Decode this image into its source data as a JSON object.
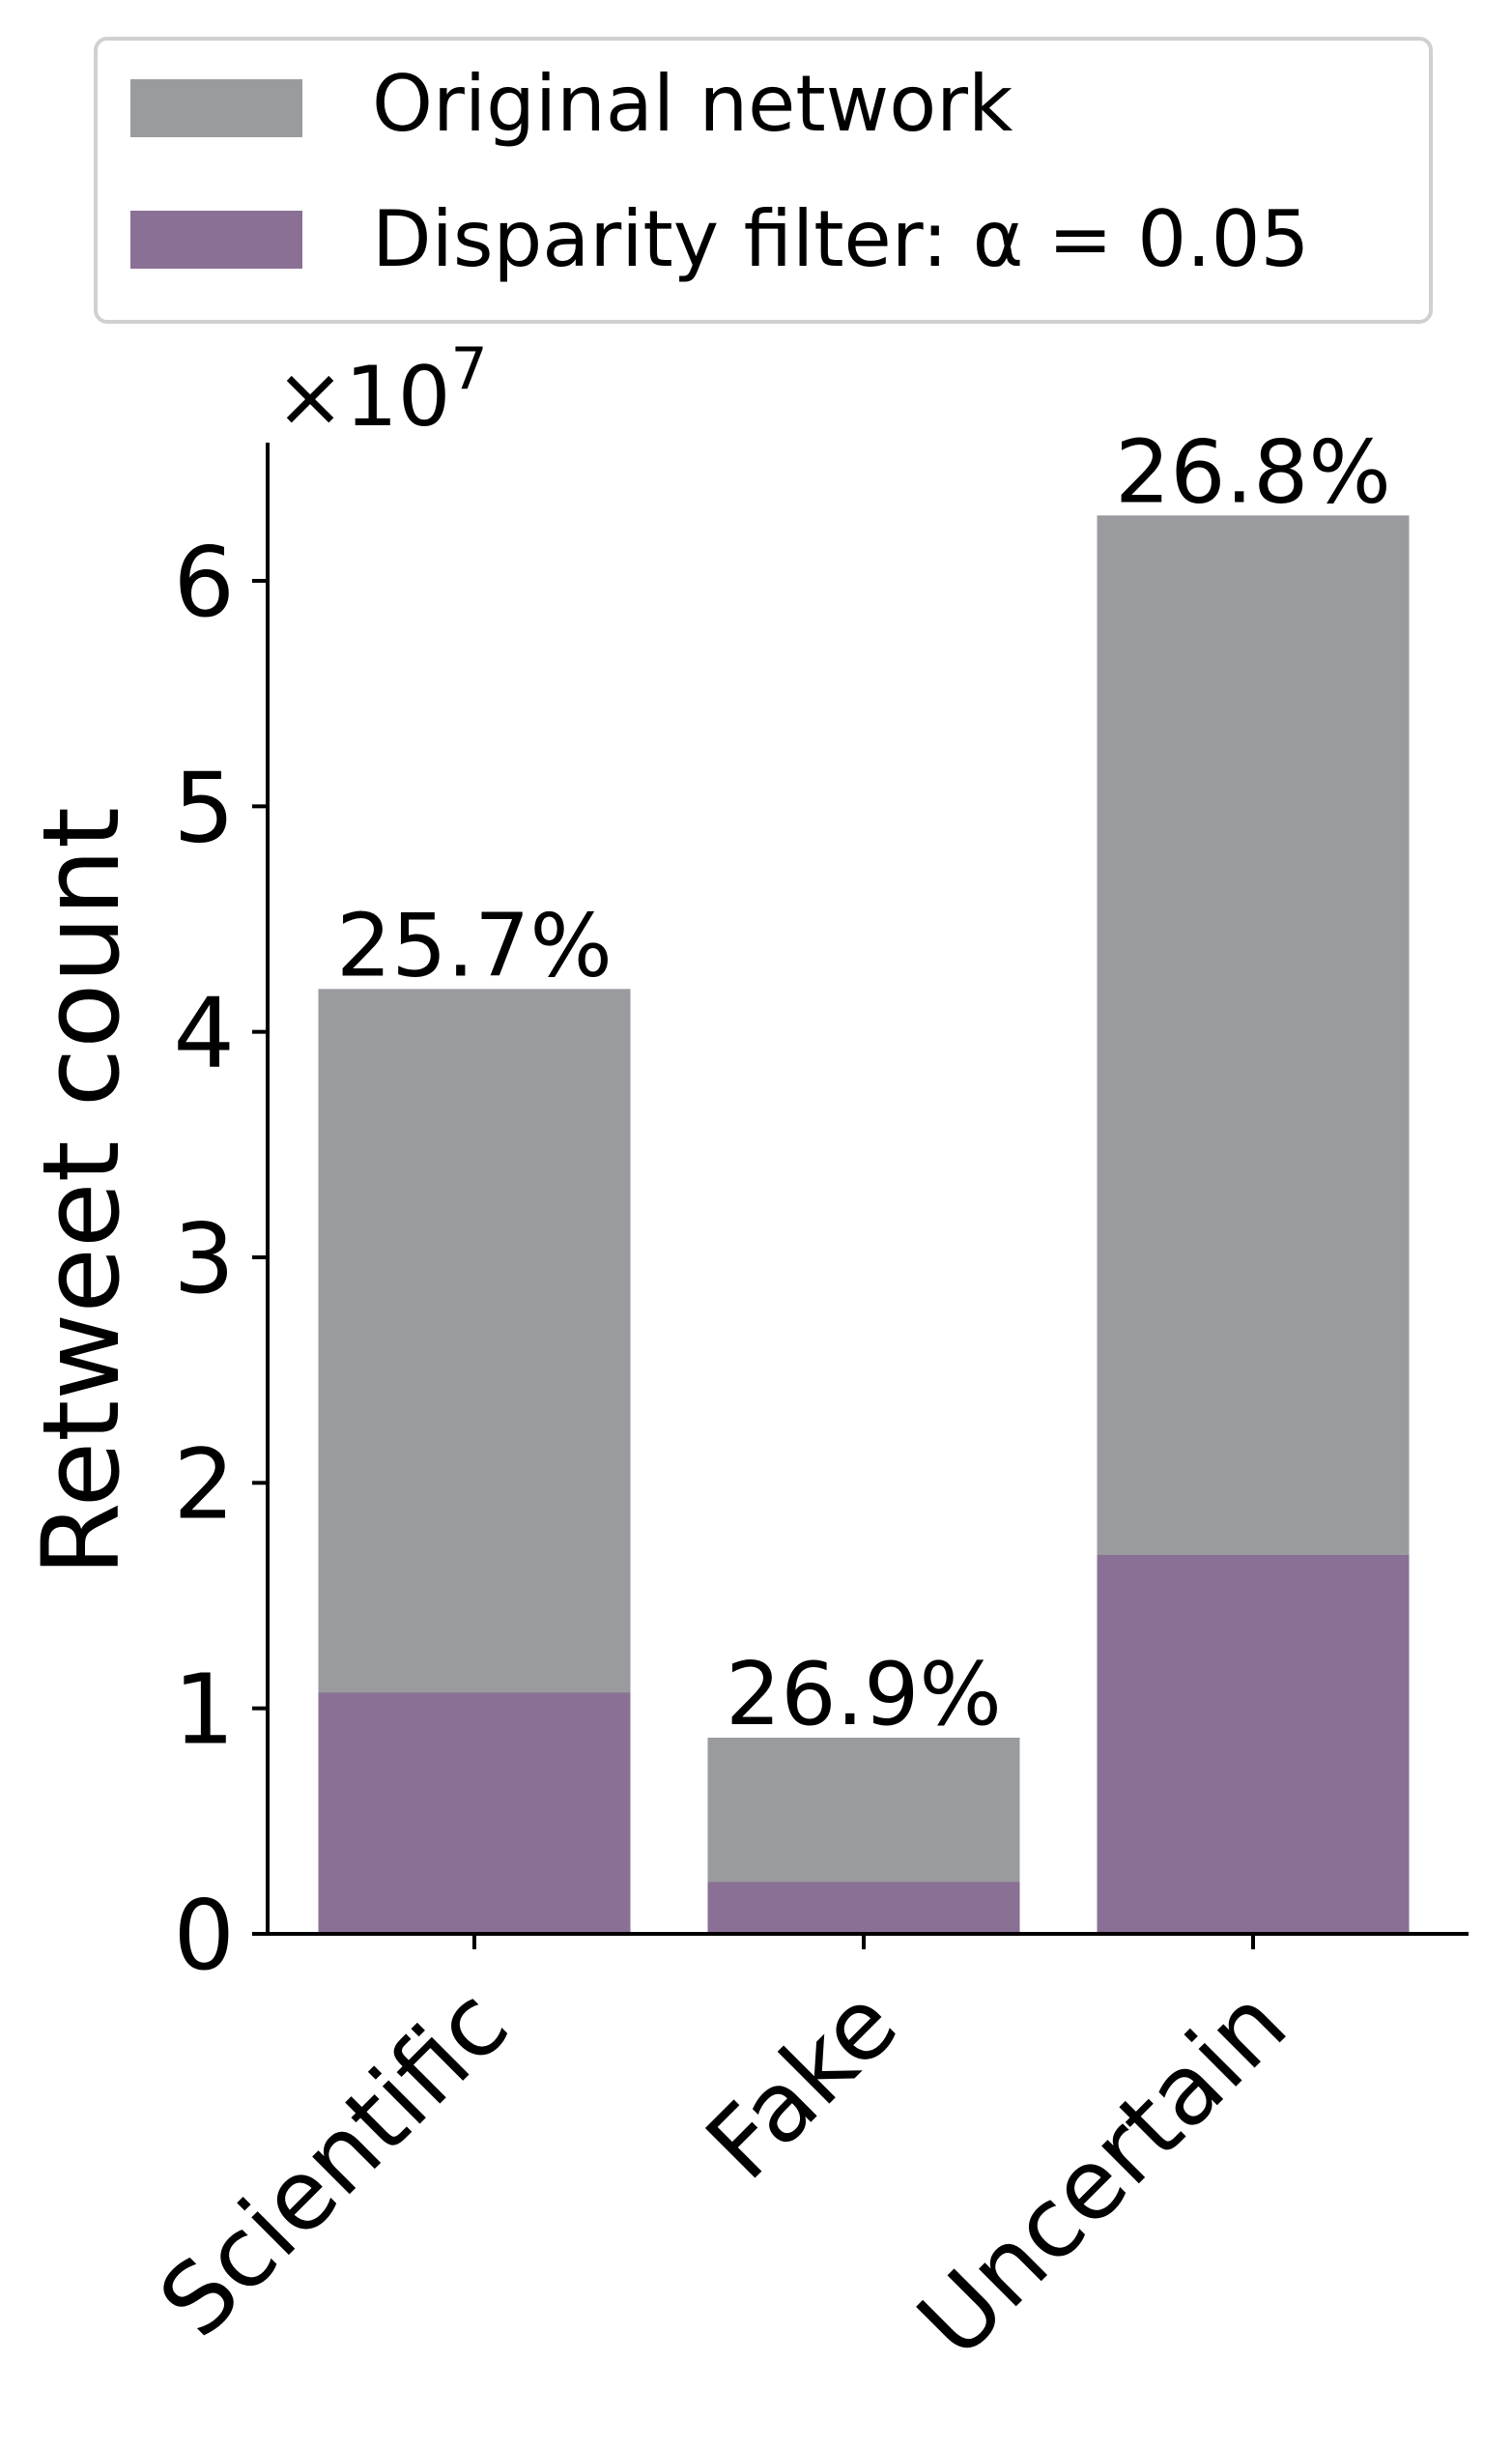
{
  "chart_data": {
    "type": "bar",
    "stacked": "overlay",
    "categories": [
      "Scientific",
      "Fake",
      "Uncertain"
    ],
    "series": [
      {
        "name": "Original network",
        "values": [
          41900000,
          8700000,
          62900000
        ],
        "color": "#9a9b9f"
      },
      {
        "name": "Disparity filter: α = 0.05",
        "values": [
          10700000,
          2300000,
          16800000
        ],
        "color": "#8a7095"
      }
    ],
    "data_labels": [
      "25.7%",
      "26.9%",
      "26.8%"
    ],
    "ylabel": "Retweet count",
    "y_multiplier": "×10^7",
    "y_multiplier_base": "×10",
    "y_multiplier_exp": "7",
    "yticks": [
      0,
      1,
      2,
      3,
      4,
      5,
      6
    ],
    "ytick_scale": 10000000,
    "ylim": [
      0,
      66000000
    ],
    "legend_position": "top",
    "grid": false
  }
}
